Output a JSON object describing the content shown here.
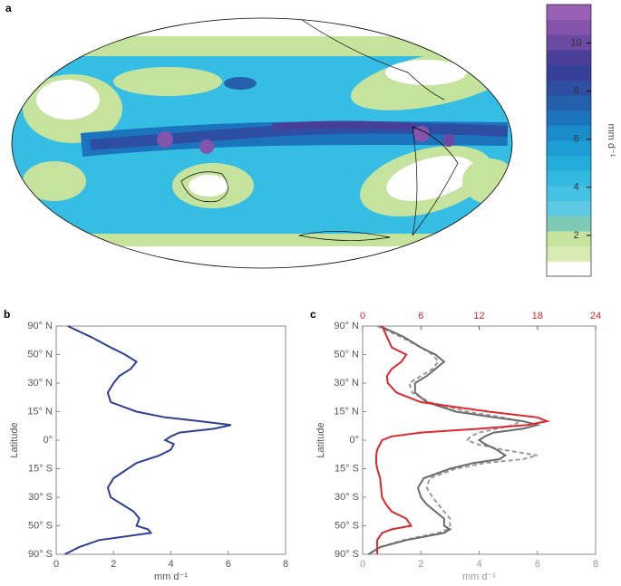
{
  "chart_data": [
    {
      "type": "map",
      "panel": "a",
      "colorbar": {
        "label": "mm d⁻¹",
        "lim": [
          0.3,
          11.6
        ],
        "ticks": [
          2,
          4,
          6,
          8,
          10
        ],
        "colors": [
          "#ffffff",
          "#d8ebb2",
          "#c6e39e",
          "#7fcab6",
          "#5fc8e2",
          "#45c1e4",
          "#33b8e0",
          "#24acdb",
          "#1c9dd3",
          "#1b8cca",
          "#1c74bc",
          "#2560ad",
          "#2d4ea2",
          "#373f99",
          "#4a3f98",
          "#6a4aa3",
          "#8453ab",
          "#9a60b6"
        ]
      }
    },
    {
      "type": "line",
      "panel": "b",
      "xlabel": "mm d⁻¹",
      "ylabel": "Latitude",
      "xlim": [
        0,
        8
      ],
      "xticks": [
        0,
        2,
        4,
        6,
        8
      ],
      "yticks": [
        {
          "value": 90,
          "label": "90° N"
        },
        {
          "value": 50,
          "label": "50° N"
        },
        {
          "value": 30,
          "label": "30° N"
        },
        {
          "value": 15,
          "label": "15° N"
        },
        {
          "value": 0,
          "label": "0°"
        },
        {
          "value": -15,
          "label": "15° S"
        },
        {
          "value": -30,
          "label": "30° S"
        },
        {
          "value": -50,
          "label": "50° S"
        },
        {
          "value": -90,
          "label": "90° S"
        }
      ],
      "lat": [
        90,
        75,
        60,
        50,
        45,
        40,
        35,
        30,
        25,
        20,
        15,
        12,
        10,
        8,
        6,
        4,
        2,
        0,
        -2,
        -5,
        -8,
        -10,
        -12,
        -15,
        -20,
        -25,
        -30,
        -35,
        -40,
        -45,
        -50,
        -55,
        -60,
        -70,
        -80,
        -90
      ],
      "series": [
        {
          "color": "#2e3f9a",
          "values": [
            0.4,
            1.2,
            1.9,
            2.4,
            2.8,
            2.6,
            2.2,
            2.0,
            1.8,
            1.9,
            2.8,
            3.8,
            5.0,
            6.1,
            5.5,
            4.3,
            4.0,
            3.8,
            4.1,
            4.0,
            3.6,
            3.2,
            2.8,
            2.5,
            2.0,
            1.8,
            1.9,
            2.3,
            2.7,
            2.9,
            2.8,
            3.2,
            3.3,
            1.5,
            0.8,
            0.3
          ]
        }
      ]
    },
    {
      "type": "line",
      "panel": "c",
      "xlabel": "mm d⁻¹",
      "ylabel": "Latitude",
      "xlim": [
        0,
        8
      ],
      "xticks": [
        0,
        2,
        4,
        6,
        8
      ],
      "xcolor": "#999999",
      "x2lim": [
        0,
        24
      ],
      "x2ticks": [
        0,
        6,
        12,
        18,
        24
      ],
      "x2color": "#e0262b",
      "yticks": [
        {
          "value": 90,
          "label": "90° N"
        },
        {
          "value": 50,
          "label": "50° N"
        },
        {
          "value": 30,
          "label": "30° N"
        },
        {
          "value": 15,
          "label": "15° N"
        },
        {
          "value": 0,
          "label": "0°"
        },
        {
          "value": -15,
          "label": "15° S"
        },
        {
          "value": -30,
          "label": "30° S"
        },
        {
          "value": -50,
          "label": "50° S"
        },
        {
          "value": -90,
          "label": "90° S"
        }
      ],
      "lat": [
        90,
        75,
        60,
        50,
        45,
        40,
        35,
        30,
        25,
        20,
        15,
        12,
        10,
        8,
        6,
        4,
        2,
        0,
        -2,
        -5,
        -8,
        -10,
        -12,
        -15,
        -20,
        -25,
        -30,
        -35,
        -40,
        -45,
        -50,
        -55,
        -60,
        -70,
        -80,
        -90
      ],
      "series": [
        {
          "color": "#999999",
          "dash": true,
          "values": [
            0.5,
            1.3,
            2.0,
            2.4,
            2.6,
            2.4,
            2.0,
            1.6,
            1.7,
            2.3,
            3.6,
            4.8,
            5.4,
            5.2,
            4.6,
            4.0,
            3.7,
            3.6,
            3.9,
            4.8,
            6.0,
            5.5,
            4.2,
            3.2,
            2.3,
            2.2,
            2.4,
            2.6,
            2.8,
            3.0,
            3.0,
            2.9,
            2.6,
            1.4,
            0.6,
            0.2
          ]
        },
        {
          "color": "#6b6b6b",
          "values": [
            0.6,
            1.4,
            2.0,
            2.5,
            2.8,
            2.5,
            2.2,
            1.8,
            1.8,
            2.2,
            3.2,
            4.5,
            5.5,
            6.0,
            5.5,
            4.5,
            4.2,
            4.0,
            4.2,
            4.6,
            4.9,
            4.7,
            3.8,
            3.0,
            2.1,
            1.9,
            2.0,
            2.2,
            2.5,
            2.8,
            2.8,
            3.0,
            2.8,
            1.5,
            0.6,
            0.2
          ]
        },
        {
          "color": "#e0262b",
          "axis": "x2",
          "values": [
            2,
            2.5,
            3,
            4.5,
            4,
            3,
            2.5,
            2.6,
            3.5,
            6,
            13,
            18,
            19,
            17,
            12,
            6,
            3,
            2,
            1.8,
            1.5,
            1.4,
            1.4,
            1.4,
            1.5,
            1.8,
            1.9,
            2,
            2.4,
            3,
            4.5,
            5,
            3,
            2,
            1.5,
            1.5,
            1.5
          ]
        }
      ]
    }
  ]
}
